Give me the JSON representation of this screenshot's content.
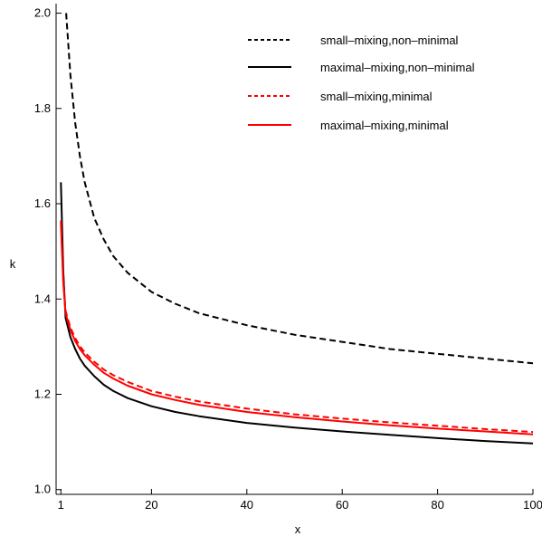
{
  "chart_data": {
    "type": "line",
    "xlabel": "x",
    "ylabel": "k",
    "xlim": [
      0,
      100
    ],
    "ylim": [
      0.99,
      2.02
    ],
    "x_ticks": [
      1,
      20,
      40,
      60,
      80,
      100
    ],
    "y_ticks": [
      1.0,
      1.2,
      1.4,
      1.6,
      1.8,
      2.0
    ],
    "x_tick_labels": [
      "1",
      "20",
      "40",
      "60",
      "80",
      "100"
    ],
    "y_tick_labels": [
      "1.0",
      "1.2",
      "1.4",
      "1.6",
      "1.8",
      "2.0"
    ],
    "grid": false,
    "legend_position": "top-right",
    "series": [
      {
        "name": "small–mixing,non–minimal",
        "color": "#000000",
        "dash": "dashed",
        "x": [
          2.1,
          3,
          4,
          5,
          6,
          8,
          10,
          12,
          15,
          20,
          25,
          30,
          40,
          50,
          60,
          70,
          80,
          90,
          100
        ],
        "y": [
          2.0,
          1.87,
          1.77,
          1.7,
          1.645,
          1.57,
          1.525,
          1.49,
          1.455,
          1.415,
          1.39,
          1.37,
          1.345,
          1.325,
          1.31,
          1.295,
          1.285,
          1.275,
          1.265
        ]
      },
      {
        "name": "maximal–mixing,non–minimal",
        "color": "#000000",
        "dash": "solid",
        "x": [
          1,
          1.5,
          2,
          3,
          4,
          5,
          6,
          8,
          10,
          12,
          15,
          20,
          25,
          30,
          40,
          50,
          60,
          70,
          80,
          90,
          100
        ],
        "y": [
          1.645,
          1.46,
          1.36,
          1.32,
          1.295,
          1.275,
          1.26,
          1.238,
          1.22,
          1.207,
          1.192,
          1.175,
          1.163,
          1.154,
          1.14,
          1.13,
          1.122,
          1.115,
          1.108,
          1.102,
          1.097
        ]
      },
      {
        "name": "small–mixing,minimal",
        "color": "#ff0000",
        "dash": "dashed",
        "x": [
          1,
          1.5,
          2,
          3,
          4,
          5,
          6,
          8,
          10,
          12,
          15,
          20,
          25,
          30,
          40,
          50,
          60,
          70,
          80,
          90,
          100
        ],
        "y": [
          1.565,
          1.44,
          1.375,
          1.34,
          1.318,
          1.301,
          1.288,
          1.268,
          1.252,
          1.24,
          1.226,
          1.207,
          1.195,
          1.185,
          1.17,
          1.158,
          1.149,
          1.141,
          1.134,
          1.127,
          1.121
        ]
      },
      {
        "name": "maximal–mixing,minimal",
        "color": "#ff0000",
        "dash": "solid",
        "x": [
          1,
          1.5,
          2,
          3,
          4,
          5,
          6,
          8,
          10,
          12,
          15,
          20,
          25,
          30,
          40,
          50,
          60,
          70,
          80,
          90,
          100
        ],
        "y": [
          1.56,
          1.435,
          1.37,
          1.335,
          1.312,
          1.295,
          1.282,
          1.262,
          1.245,
          1.233,
          1.218,
          1.2,
          1.188,
          1.178,
          1.163,
          1.152,
          1.143,
          1.135,
          1.128,
          1.122,
          1.116
        ]
      }
    ]
  }
}
